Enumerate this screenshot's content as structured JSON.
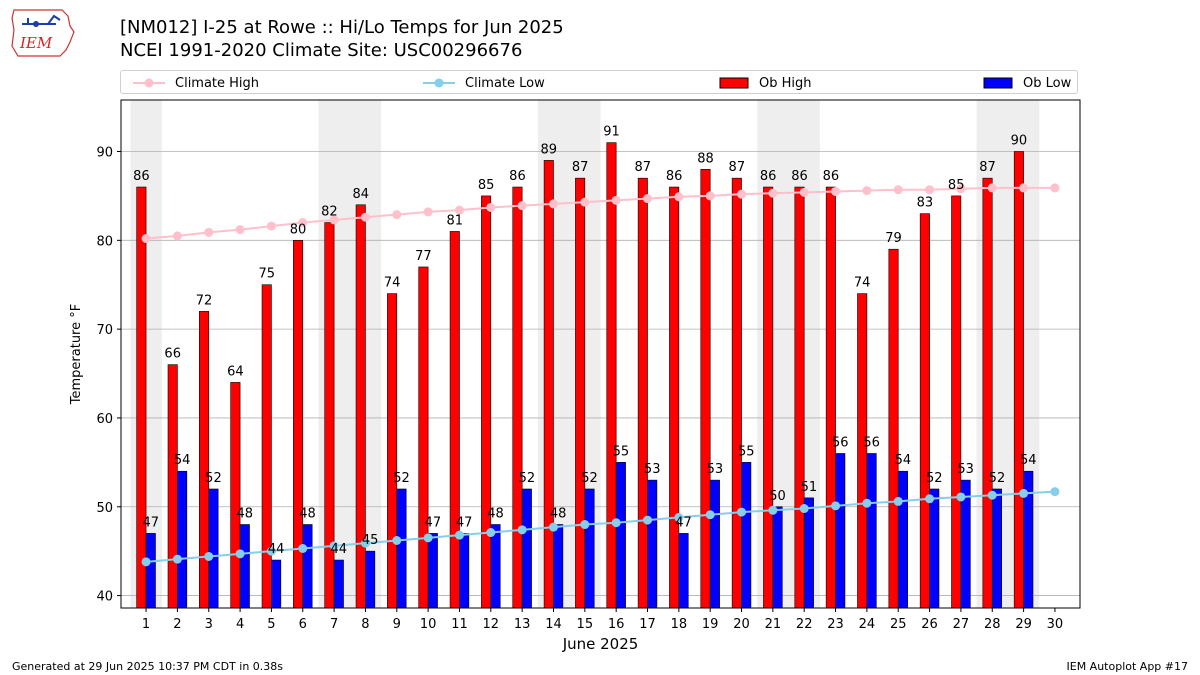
{
  "header": {
    "title_line1": "[NM012] I-25 at Rowe  :: Hi/Lo Temps for Jun 2025",
    "title_line2": "NCEI 1991-2020 Climate Site: USC00296676",
    "logo_text": "IEM"
  },
  "legend": {
    "climate_high": "Climate High",
    "climate_low": "Climate Low",
    "ob_high": "Ob High",
    "ob_low": "Ob Low"
  },
  "footer": {
    "left": "Generated at 29 Jun 2025 10:37 PM CDT in 0.38s",
    "right": "IEM Autoplot App #17"
  },
  "colors": {
    "ob_high": "#ff0000",
    "ob_low": "#0000ff",
    "climate_high": "#ffc0cb",
    "climate_low": "#87ceeb",
    "weekend_shade": "#eeeeee",
    "grid": "#b0b0b0"
  },
  "chart_data": {
    "type": "bar",
    "xlabel": "June 2025",
    "ylabel": "Temperature °F",
    "ylim": [
      38.6,
      95.8
    ],
    "yticks": [
      40,
      50,
      60,
      70,
      80,
      90
    ],
    "grid": "horizontal",
    "legend_position": "top",
    "days": [
      1,
      2,
      3,
      4,
      5,
      6,
      7,
      8,
      9,
      10,
      11,
      12,
      13,
      14,
      15,
      16,
      17,
      18,
      19,
      20,
      21,
      22,
      23,
      24,
      25,
      26,
      27,
      28,
      29,
      30
    ],
    "shaded_days": [
      1,
      7,
      8,
      14,
      15,
      21,
      22,
      28,
      29
    ],
    "series": [
      {
        "name": "Ob High",
        "kind": "bar",
        "values": [
          86,
          66,
          72,
          64,
          75,
          80,
          82,
          84,
          74,
          77,
          81,
          85,
          86,
          89,
          87,
          91,
          87,
          86,
          88,
          87,
          86,
          86,
          86,
          74,
          79,
          83,
          85,
          87,
          90,
          null
        ]
      },
      {
        "name": "Ob Low",
        "kind": "bar",
        "values": [
          47,
          54,
          52,
          48,
          44,
          48,
          44,
          45,
          52,
          47,
          47,
          48,
          52,
          48,
          52,
          55,
          53,
          47,
          53,
          55,
          50,
          51,
          56,
          56,
          54,
          52,
          53,
          52,
          54,
          null
        ]
      },
      {
        "name": "Climate High",
        "kind": "line",
        "values": [
          80.2,
          80.5,
          80.9,
          81.2,
          81.6,
          82.0,
          82.3,
          82.6,
          82.9,
          83.2,
          83.4,
          83.7,
          83.9,
          84.1,
          84.3,
          84.5,
          84.7,
          84.9,
          85.0,
          85.2,
          85.3,
          85.4,
          85.5,
          85.6,
          85.7,
          85.7,
          85.8,
          85.9,
          85.9,
          85.9
        ]
      },
      {
        "name": "Climate Low",
        "kind": "line",
        "values": [
          43.8,
          44.1,
          44.4,
          44.7,
          45.0,
          45.3,
          45.6,
          45.9,
          46.2,
          46.5,
          46.8,
          47.1,
          47.4,
          47.7,
          48.0,
          48.2,
          48.5,
          48.8,
          49.1,
          49.4,
          49.6,
          49.8,
          50.1,
          50.4,
          50.6,
          50.9,
          51.1,
          51.3,
          51.5,
          51.7
        ]
      }
    ]
  }
}
